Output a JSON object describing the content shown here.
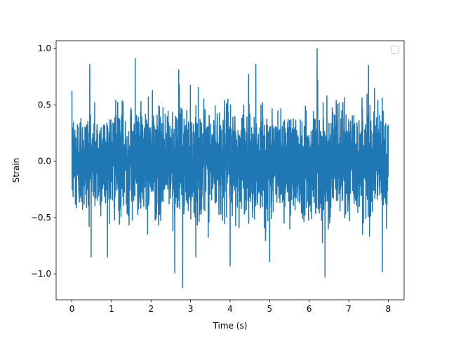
{
  "chart_data": {
    "type": "line",
    "title": "",
    "xlabel": "Time (s)",
    "ylabel": "Strain",
    "xlim": [
      -0.4,
      8.4
    ],
    "ylim": [
      -1.23,
      1.07
    ],
    "xticks": [
      0,
      1,
      2,
      3,
      4,
      5,
      6,
      7,
      8
    ],
    "yticks": [
      -1.0,
      -0.5,
      0.0,
      0.5,
      1.0
    ],
    "xtick_labels": [
      "0",
      "1",
      "2",
      "3",
      "4",
      "5",
      "6",
      "7",
      "8"
    ],
    "ytick_labels": [
      "−1.0",
      "−0.5",
      "0.0",
      "0.5",
      "1.0"
    ],
    "grid": false,
    "legend": {
      "placement": "top-right",
      "entries": []
    },
    "series": [
      {
        "color": "#1f77b4",
        "x_range": [
          0,
          8
        ],
        "approx_std": 0.3,
        "peaks": [
          {
            "x": 0.45,
            "y": 0.86
          },
          {
            "x": 1.6,
            "y": 0.91
          },
          {
            "x": 2.7,
            "y": 0.81
          },
          {
            "x": 4.65,
            "y": 0.86
          },
          {
            "x": 6.2,
            "y": 1.0
          },
          {
            "x": 7.5,
            "y": 0.85
          },
          {
            "x": 2.8,
            "y": -1.12
          },
          {
            "x": 2.6,
            "y": -0.99
          },
          {
            "x": 4.0,
            "y": -0.93
          },
          {
            "x": 6.4,
            "y": -1.03
          },
          {
            "x": 7.85,
            "y": -0.98
          },
          {
            "x": 5.0,
            "y": -0.89
          }
        ]
      }
    ]
  }
}
